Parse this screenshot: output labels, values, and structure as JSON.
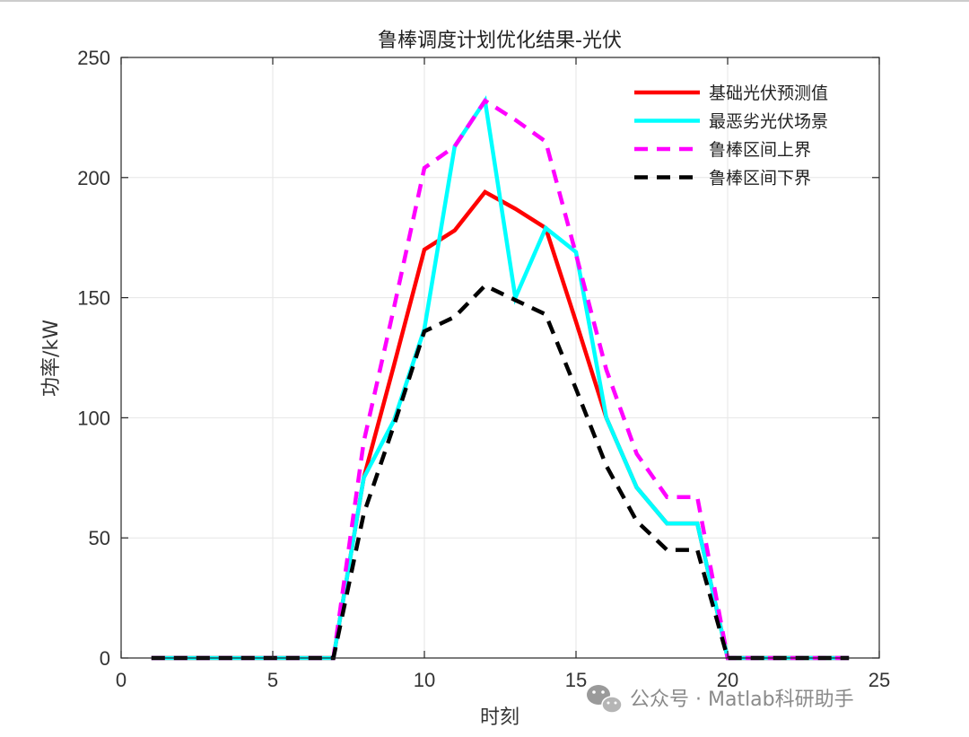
{
  "chart_data": {
    "type": "line",
    "title": "鲁棒调度计划优化结果-光伏",
    "xlabel": "时刻",
    "ylabel": "功率/kW",
    "xlim": [
      0,
      25
    ],
    "ylim": [
      0,
      250
    ],
    "xticks": [
      "0",
      "5",
      "10",
      "15",
      "20",
      "25"
    ],
    "yticks": [
      "0",
      "50",
      "100",
      "150",
      "200",
      "250"
    ],
    "grid": true,
    "legend_position": "top-right",
    "x": [
      1,
      2,
      3,
      4,
      5,
      6,
      7,
      8,
      9,
      10,
      11,
      12,
      13,
      14,
      15,
      16,
      17,
      18,
      19,
      20,
      21,
      22,
      23,
      24
    ],
    "series": [
      {
        "name": "基础光伏预测值",
        "color": "#ff0000",
        "dash": "solid",
        "values": [
          0,
          0,
          0,
          0,
          0,
          0,
          0,
          75,
          122,
          170,
          178,
          194,
          187,
          179,
          140,
          100,
          71,
          56,
          56,
          0,
          0,
          0,
          0,
          0
        ]
      },
      {
        "name": "最恶劣光伏场景",
        "color": "#00ffff",
        "dash": "solid",
        "values": [
          0,
          0,
          0,
          0,
          0,
          0,
          0,
          75,
          99,
          137,
          213,
          232,
          150,
          179,
          169,
          100,
          71,
          56,
          56,
          0,
          0,
          0,
          0,
          0
        ]
      },
      {
        "name": "鲁棒区间上界",
        "color": "#ff00ff",
        "dash": "dashed",
        "values": [
          0,
          0,
          0,
          0,
          0,
          0,
          0,
          90,
          146,
          204,
          213,
          232,
          224,
          215,
          168,
          120,
          85,
          67,
          67,
          0,
          0,
          0,
          0,
          0
        ]
      },
      {
        "name": "鲁棒区间下界",
        "color": "#000000",
        "dash": "dashed",
        "values": [
          0,
          0,
          0,
          0,
          0,
          0,
          0,
          60,
          97,
          136,
          142,
          155,
          149,
          143,
          112,
          80,
          57,
          45,
          45,
          0,
          0,
          0,
          0,
          0
        ]
      }
    ]
  },
  "watermark": {
    "text": "公众号 · Matlab科研助手",
    "icon": "wechat-icon"
  }
}
